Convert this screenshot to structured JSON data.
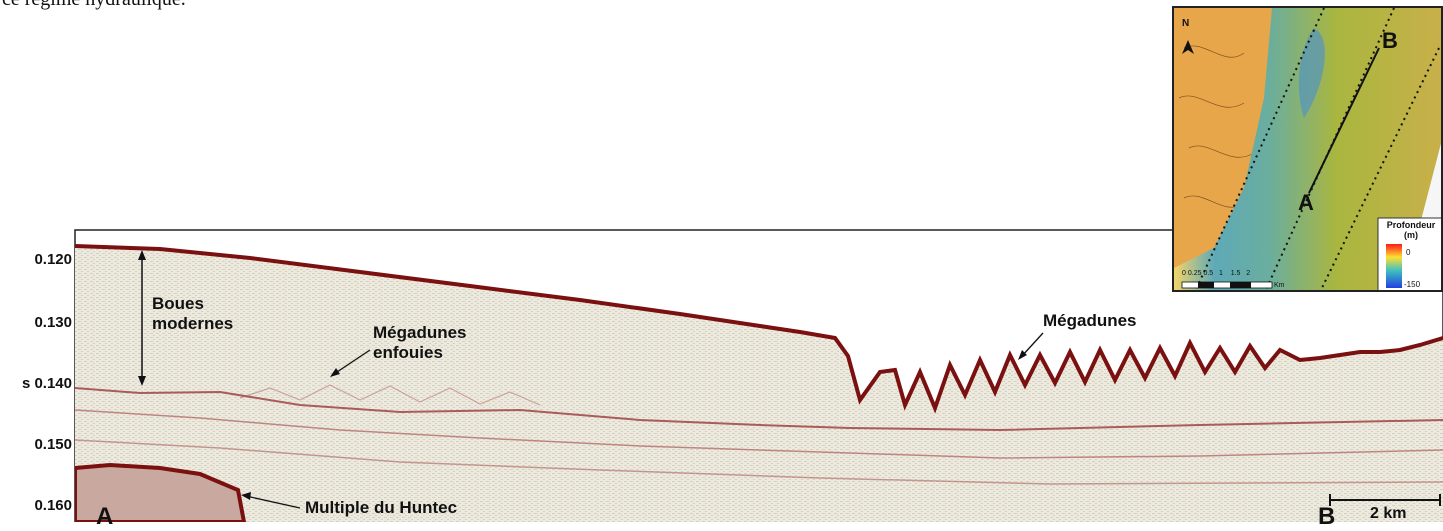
{
  "caption_fragment": "ce régime hydraulique.",
  "profile": {
    "y_axis_unit": "s",
    "y_ticks": [
      "0.120",
      "0.130",
      "0.140",
      "0.150",
      "0.160"
    ],
    "annotations": {
      "boues": [
        "Boues",
        "modernes"
      ],
      "megadunes_enfouies": [
        "Mégadunes",
        "enfouies"
      ],
      "megadunes": "Mégadunes",
      "multiple": "Multiple du Huntec"
    },
    "endpoint_a": "A",
    "endpoint_b": "B",
    "scale_bar": "2 km"
  },
  "inset_map": {
    "north": "N",
    "label_a": "A",
    "label_b": "B",
    "legend_title_1": "Profondeur",
    "legend_title_2": "(m)",
    "legend_max": "0",
    "legend_min": "-150",
    "scale_ticks": [
      "0",
      "0.25",
      "0.5",
      "1",
      "1.5",
      "2"
    ],
    "scale_unit": "Km",
    "colors": {
      "land": "#e8a64a",
      "shallow": "#d8b44a",
      "mid": "#a9b63f",
      "deep": "#5aa6b5",
      "deepest": "#3a6fd0"
    }
  },
  "colors": {
    "seismic_bg": "#ecede2",
    "reflector": "#7a1010",
    "reflector_light": "#b05050"
  }
}
